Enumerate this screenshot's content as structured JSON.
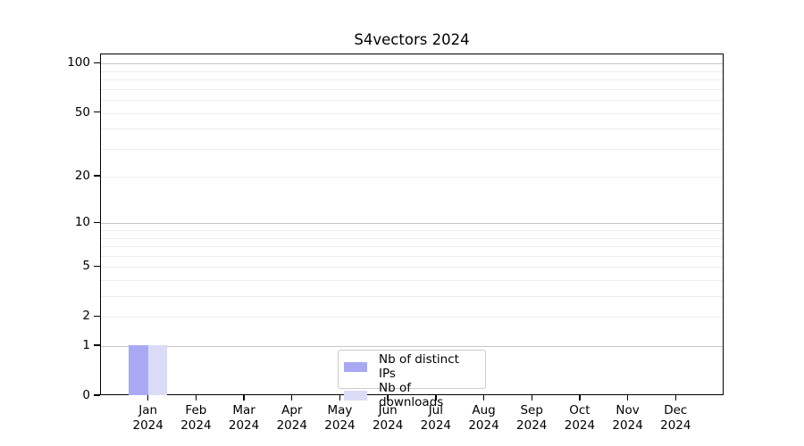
{
  "chart_data": {
    "type": "bar",
    "title": "S4vectors 2024",
    "months": [
      "Jan",
      "Feb",
      "Mar",
      "Apr",
      "May",
      "Jun",
      "Jul",
      "Aug",
      "Sep",
      "Oct",
      "Nov",
      "Dec"
    ],
    "year_label": "2024",
    "categories": [
      "Jan 2024",
      "Feb 2024",
      "Mar 2024",
      "Apr 2024",
      "May 2024",
      "Jun 2024",
      "Jul 2024",
      "Aug 2024",
      "Sep 2024",
      "Oct 2024",
      "Nov 2024",
      "Dec 2024"
    ],
    "series": [
      {
        "name": "Nb of distinct IPs",
        "color": "#a9a9f3",
        "values": [
          1,
          0,
          0,
          0,
          0,
          0,
          0,
          0,
          0,
          0,
          0,
          0
        ]
      },
      {
        "name": "Nb of downloads",
        "color": "#dbdbf7",
        "values": [
          1,
          0,
          0,
          0,
          0,
          0,
          0,
          0,
          0,
          0,
          0,
          0
        ]
      }
    ],
    "xlabel": "",
    "ylabel": "",
    "yscale": "log10(value+1)",
    "ylim": [
      0,
      113
    ],
    "yticks": [
      0,
      1,
      2,
      5,
      10,
      20,
      50,
      100
    ],
    "major_gridlines": [
      1,
      10,
      100
    ],
    "minor_gridlines": [
      2,
      3,
      4,
      5,
      6,
      7,
      8,
      9,
      20,
      30,
      40,
      50,
      60,
      70,
      80,
      90
    ],
    "grid": true,
    "legend": {
      "position": "lower center",
      "items": [
        {
          "label": "Nb of distinct IPs",
          "color": "#a9a9f3"
        },
        {
          "label": "Nb of downloads",
          "color": "#dbdbf7"
        }
      ]
    }
  },
  "colors": {
    "background": "#ffffff",
    "axis": "#000000",
    "major_grid": "#c6c6c6",
    "minor_grid": "#ededed",
    "legend_border": "#cccccc",
    "text": "#000000"
  }
}
